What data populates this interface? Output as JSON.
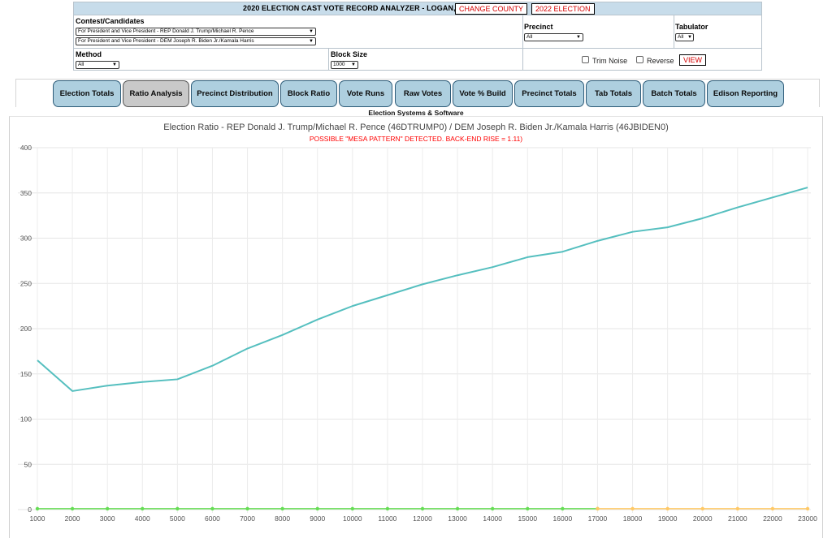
{
  "header": {
    "title": "2020 ELECTION CAST VOTE RECORD ANALYZER - LOGAN, OHIO",
    "change_county_label": "CHANGE COUNTY",
    "election_label": "2022 ELECTION"
  },
  "filters": {
    "contest_label": "Contest/Candidates",
    "contest_1": "For President and Vice President - REP Donald J. Trump/Michael R. Pence",
    "contest_2": "For President and Vice President - DEM Joseph R. Biden Jr./Kamala Harris",
    "precinct_label": "Precinct",
    "precinct_value": "All",
    "tabulator_label": "Tabulator",
    "tabulator_value": "All",
    "method_label": "Method",
    "method_value": "All",
    "block_size_label": "Block Size",
    "block_size_value": "1000",
    "trim_noise_label": "Trim Noise",
    "reverse_label": "Reverse",
    "view_label": "VIEW"
  },
  "tabs": [
    {
      "label": "Election Totals",
      "active": false
    },
    {
      "label": "Ratio Analysis",
      "active": true
    },
    {
      "label": "Precinct Distribution",
      "active": false
    },
    {
      "label": "Block Ratio",
      "active": false
    },
    {
      "label": "Vote Runs",
      "active": false
    },
    {
      "label": "Raw Votes",
      "active": false
    },
    {
      "label": "Vote % Build",
      "active": false
    },
    {
      "label": "Precinct Totals",
      "active": false
    },
    {
      "label": "Tab Totals",
      "active": false
    },
    {
      "label": "Batch Totals",
      "active": false
    },
    {
      "label": "Edison Reporting",
      "active": false
    }
  ],
  "vendor": "Election Systems & Software",
  "colors": {
    "accent_red": "#d40000",
    "tab_bg": "#aecfdf",
    "tab_active_bg": "#c9c9c9",
    "ratio_line": "#55bfbf",
    "green_line": "#66dd55",
    "orange_line": "#ffc966"
  },
  "chart_data": {
    "type": "line",
    "title": "Election Ratio - REP Donald J. Trump/Michael R. Pence (46DTRUMP0) / DEM Joseph R. Biden Jr./Kamala Harris (46JBIDEN0)",
    "subtitle": "POSSIBLE \"MESA PATTERN\" DETECTED. BACK-END RISE = 1.11)",
    "xlabel": "",
    "ylabel": "",
    "x": [
      1000,
      2000,
      3000,
      4000,
      5000,
      6000,
      7000,
      8000,
      9000,
      10000,
      11000,
      12000,
      13000,
      14000,
      15000,
      16000,
      17000,
      18000,
      19000,
      20000,
      21000,
      22000,
      23000
    ],
    "ylim": [
      0,
      400
    ],
    "yticks": [
      0,
      50,
      100,
      150,
      200,
      250,
      300,
      350,
      400
    ],
    "grid": true,
    "series": [
      {
        "values": [
          165,
          131,
          137,
          141,
          144,
          159,
          178,
          193,
          210,
          225,
          237,
          249,
          259,
          268,
          279,
          285,
          297,
          307,
          312,
          322,
          334,
          345,
          356
        ]
      },
      {
        "values": [
          1,
          1,
          1,
          1,
          1,
          1,
          1,
          1,
          1,
          1,
          1,
          1,
          1,
          1,
          1,
          1,
          1,
          null,
          null,
          null,
          null,
          null,
          null
        ]
      },
      {
        "values": [
          null,
          null,
          null,
          null,
          null,
          null,
          null,
          null,
          null,
          null,
          null,
          null,
          null,
          null,
          null,
          null,
          1,
          1,
          1,
          1,
          1,
          1,
          1
        ]
      }
    ]
  }
}
